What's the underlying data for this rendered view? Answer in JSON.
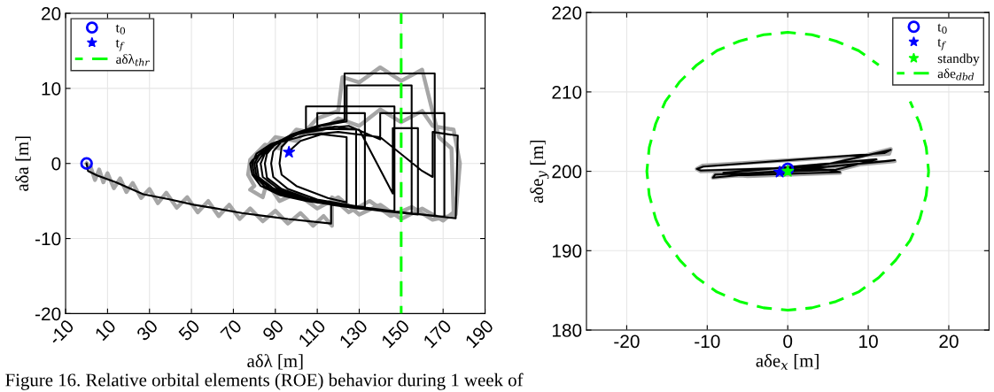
{
  "chart_data": [
    {
      "type": "line",
      "xlabel": "aδλ [m]",
      "ylabel": "aδa [m]",
      "xlim": [
        -10,
        190
      ],
      "ylim": [
        -20,
        20
      ],
      "xticks": [
        -10,
        10,
        30,
        50,
        70,
        90,
        110,
        130,
        150,
        170,
        190
      ],
      "yticks": [
        -20,
        -10,
        0,
        10,
        20
      ],
      "grid": true,
      "legend": "top left",
      "series": [
        {
          "color": "#a6a6a6",
          "x": [
            0,
            2,
            4,
            6,
            8,
            10,
            13,
            16,
            19,
            22,
            26,
            30,
            34,
            38,
            43,
            48,
            53,
            58,
            63,
            68,
            73,
            78,
            84,
            90,
            96,
            102,
            108,
            113,
            117,
            117,
            125,
            135,
            145,
            155,
            165,
            176,
            178,
            175,
            165,
            160,
            150,
            140,
            130,
            120,
            110,
            100,
            92,
            85,
            78,
            77,
            80,
            78,
            84,
            86,
            92,
            100,
            110,
            120,
            130,
            140,
            150,
            160,
            170,
            175,
            174,
            168,
            160,
            150,
            140,
            130,
            122,
            120,
            110,
            100,
            90,
            82,
            78
          ],
          "values": [
            0,
            -0.5,
            -2.2,
            -0.8,
            -2.5,
            -1.3,
            -3.3,
            -2,
            -3.8,
            -2.6,
            -4.6,
            -3.4,
            -5.3,
            -3.9,
            -5.9,
            -4.5,
            -6.5,
            -5,
            -7,
            -5.5,
            -7.4,
            -6,
            -7.7,
            -6.3,
            -8,
            -6.6,
            -8.3,
            -7,
            -8.3,
            -4.5,
            -6.5,
            -5,
            -7,
            -5.8,
            -7.5,
            -6.8,
            0,
            4.5,
            5,
            7,
            5.5,
            7.2,
            5,
            6,
            4,
            4.5,
            2,
            2.5,
            0.5,
            -1.5,
            -3,
            -3.5,
            -4.5,
            -2.5,
            -5,
            -4,
            -6,
            -4.5,
            -6.8,
            -5.5,
            -7.4,
            -6,
            -7.6,
            -6.5,
            2,
            3.5,
            12.5,
            11,
            12.8,
            10.8,
            11.5,
            7,
            6,
            3,
            3.5,
            1,
            -0.5
          ]
        },
        {
          "color": "#000000",
          "x": [
            0,
            0.7,
            5,
            14,
            27,
            40,
            51,
            62,
            74,
            85,
            96,
            116.6,
            116.6,
            130,
            150,
            176,
            177,
            165,
            165,
            160,
            140,
            120,
            105,
            92,
            84,
            79,
            78,
            79,
            83,
            92,
            105,
            120,
            140,
            158,
            158,
            146,
            146,
            130,
            115,
            100,
            88,
            81,
            79,
            80,
            85,
            95,
            110,
            130,
            150,
            170.6,
            170.6,
            140,
            140,
            125,
            110,
            97,
            87,
            82,
            80,
            81,
            87,
            98,
            114,
            132,
            155,
            155,
            124,
            124,
            112,
            100,
            90,
            84,
            81,
            82,
            89,
            100,
            120,
            140,
            166,
            166,
            123,
            123,
            110,
            98,
            89,
            85,
            83,
            84,
            91,
            103,
            122,
            145,
            146.8,
            146.8,
            104.6,
            104.6,
            97,
            90,
            86,
            85,
            86,
            93,
            106,
            125,
            132.7,
            132.7,
            110,
            110,
            100,
            93,
            89,
            88,
            89,
            96,
            110,
            128.5,
            128.5,
            118,
            105,
            97,
            93,
            92,
            93,
            100,
            115,
            124,
            124,
            112,
            102,
            98,
            96.5
          ],
          "values": [
            0,
            -1,
            -1.6,
            -2.5,
            -4.1,
            -4.8,
            -5.5,
            -6,
            -6.6,
            -7,
            -7.4,
            -8,
            -5.5,
            -6,
            -6.5,
            -7.3,
            3.7,
            4.2,
            -1.8,
            -1,
            3.5,
            4.2,
            3.8,
            2.8,
            1.6,
            0.4,
            0,
            -1.5,
            -3,
            -4.2,
            -5,
            -5.6,
            -6.3,
            -6.8,
            4.7,
            4.7,
            -4,
            4.5,
            4.6,
            3.9,
            2.6,
            1.3,
            0,
            -1.6,
            -3.1,
            -4.3,
            -5.2,
            -5.9,
            -6.5,
            -7.1,
            6.7,
            6.7,
            3.2,
            5,
            4.6,
            3.6,
            2.2,
            1,
            0,
            -1.7,
            -3.2,
            -4.4,
            -5.3,
            -6,
            -6.7,
            10.4,
            10.4,
            5.6,
            5,
            4,
            2.6,
            1.2,
            0,
            -1.8,
            -3.3,
            -4.5,
            -5.5,
            -6.2,
            -7,
            12,
            12,
            5.8,
            5,
            3.9,
            2.5,
            1.3,
            0,
            -1.8,
            -3.3,
            -4.6,
            -5.5,
            -6.3,
            -6.3,
            7.6,
            7.6,
            4.4,
            3.7,
            2.6,
            1.3,
            0,
            -1.9,
            -3.4,
            -4.7,
            -5.6,
            -5.8,
            6.7,
            6.7,
            4.8,
            4,
            2.9,
            1.6,
            0,
            -1.8,
            -3.4,
            -4.8,
            -5.7,
            4.5,
            4.9,
            4.4,
            3.4,
            2.2,
            0,
            -1.5,
            -3,
            -4.6,
            -5.2,
            3.5,
            3.9,
            3,
            2,
            1.5
          ]
        },
        {
          "type": "scatter",
          "name": "t$_{0}$",
          "marker": "circle",
          "color": "#0000ff",
          "x": [
            0
          ],
          "values": [
            0
          ]
        },
        {
          "type": "scatter",
          "name": "t$_{f}$",
          "marker": "star",
          "color": "#0000ff",
          "x": [
            96.5
          ],
          "values": [
            1.5
          ]
        },
        {
          "type": "line",
          "name": "aδλ$_{thr}$",
          "line_style": "dashed",
          "color": "#00ff00",
          "x": [
            150,
            150
          ],
          "values": [
            -20,
            20
          ]
        }
      ],
      "annotations": [
        "Figure 16. Relative orbital elements (ROE) behavior during 1 week of"
      ]
    },
    {
      "type": "line",
      "xlabel": "aδe$_{x}$ [m]",
      "ylabel": "aδe$_{y}$ [m]",
      "xlim": [
        -25,
        25
      ],
      "ylim": [
        180,
        220
      ],
      "xticks": [
        -20,
        -10,
        0,
        10,
        20
      ],
      "yticks": [
        180,
        190,
        200,
        210,
        220
      ],
      "grid": true,
      "legend": "top right",
      "series": [
        {
          "color": "#a6a6a6",
          "x": [
            0,
            5,
            12.8,
            12.6,
            -10.6,
            -11.3,
            -10.8,
            5,
            13.3,
            12.5,
            -9.3,
            -9,
            6,
            11,
            -8,
            -5,
            6.5,
            4,
            -6,
            -1
          ],
          "values": [
            200.2,
            200.8,
            202.8,
            202.2,
            200.7,
            200.3,
            200,
            200.5,
            201.3,
            201.2,
            199.2,
            199.6,
            200.1,
            201.4,
            199.7,
            199.4,
            199.8,
            200.2,
            199.6,
            199.9
          ]
        },
        {
          "color": "#000000",
          "x": [
            0,
            5,
            12.8,
            12,
            -10.5,
            -11.3,
            -10.8,
            5,
            13.3,
            12.5,
            -9.3,
            -9,
            6,
            11,
            -8,
            -5,
            6.5,
            4,
            -6,
            -1
          ],
          "values": [
            200.3,
            200.9,
            202.7,
            202.3,
            200.6,
            200.3,
            200.1,
            200.6,
            201.4,
            201.3,
            199.2,
            199.6,
            200.2,
            201.5,
            199.8,
            199.5,
            199.9,
            200.3,
            199.7,
            199.9
          ]
        },
        {
          "type": "scatter",
          "name": "t$_{0}$",
          "marker": "circle",
          "color": "#0000ff",
          "x": [
            0
          ],
          "values": [
            200.3
          ]
        },
        {
          "type": "scatter",
          "name": "t$_{f}$",
          "marker": "star",
          "color": "#0000ff",
          "x": [
            -1
          ],
          "values": [
            199.9
          ]
        },
        {
          "type": "scatter",
          "name": "standby",
          "marker": "star",
          "color": "#00ff00",
          "x": [
            0
          ],
          "values": [
            200
          ]
        },
        {
          "type": "line",
          "name": "aδe$_{dbd}$",
          "line_style": "dashed",
          "color": "#00ff00",
          "x": [
            17.5,
            17.2,
            16.4,
            15.2,
            13.4,
            11.3,
            8.8,
            6,
            3,
            0,
            -3,
            -6,
            -8.8,
            -11.3,
            -13.4,
            -15.2,
            -16.4,
            -17.2,
            -17.5,
            -17.2,
            -16.4,
            -15.2,
            -13.4,
            -11.3,
            -8.8,
            -6,
            -3,
            0,
            3,
            6,
            8.8,
            11.3,
            13.4,
            15.2,
            16.4,
            17.2,
            17.5
          ],
          "values": [
            200,
            203,
            206,
            208.8,
            null,
            213.4,
            215.2,
            216.4,
            217.2,
            217.5,
            217.2,
            216.4,
            215.2,
            213.4,
            211.3,
            208.8,
            206,
            203,
            200,
            197,
            194,
            191.3,
            188.8,
            186.6,
            184.8,
            183.6,
            182.8,
            182.5,
            182.8,
            183.6,
            184.8,
            186.6,
            188.8,
            191.3,
            194,
            197,
            200
          ]
        }
      ]
    }
  ]
}
